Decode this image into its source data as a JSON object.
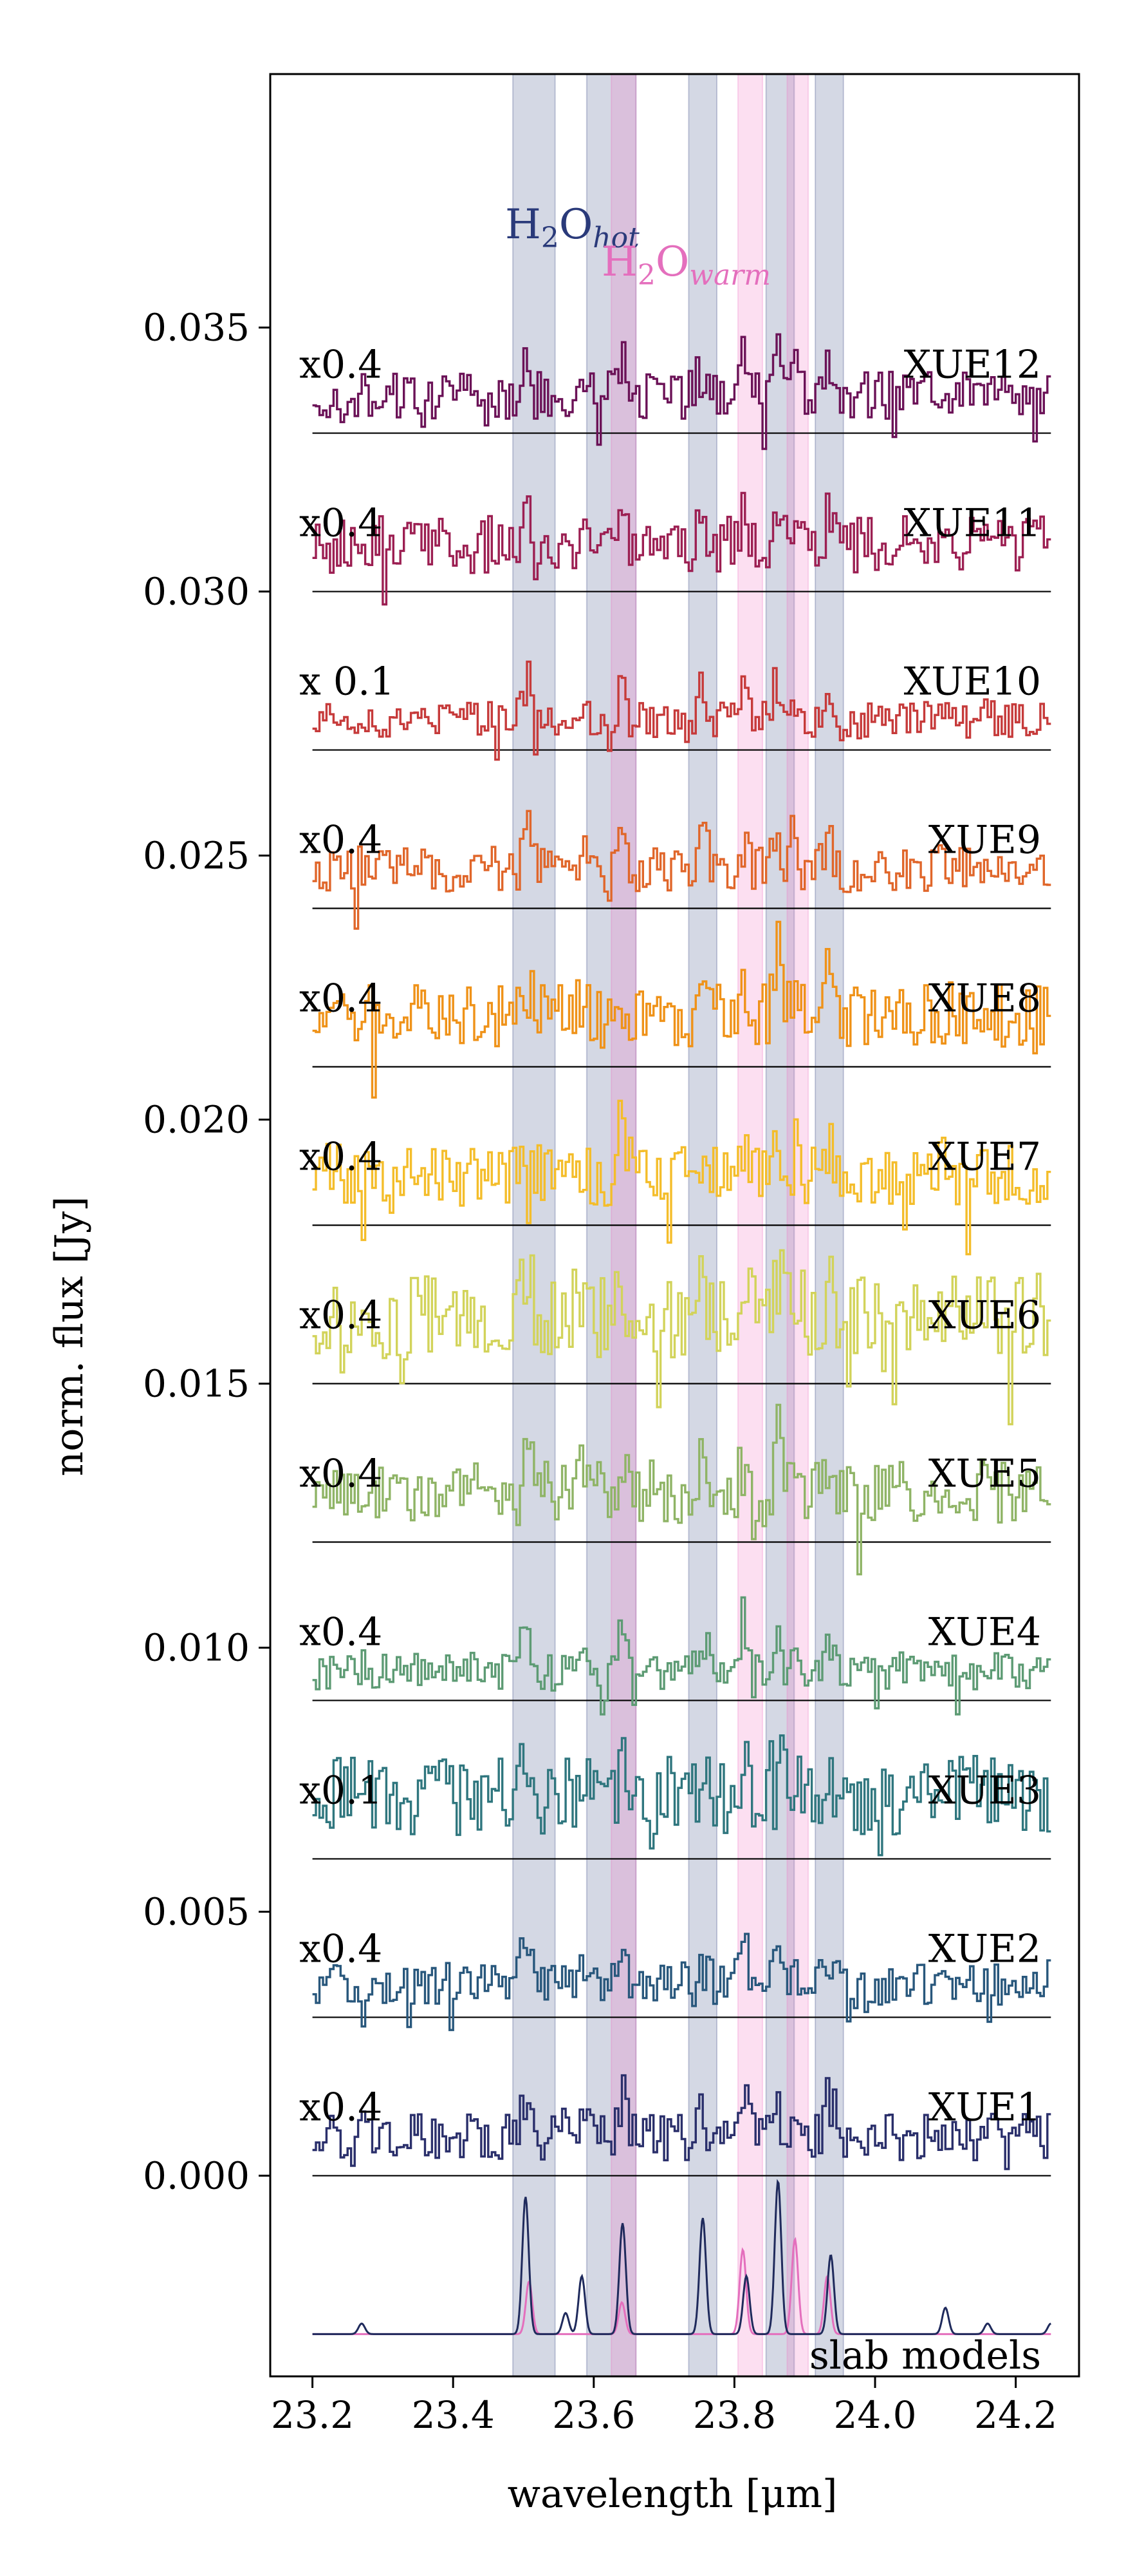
{
  "chart_data": {
    "type": "line",
    "title": "",
    "xlabel": "wavelength [μm]",
    "ylabel": "norm. flux [Jy]",
    "xlim": [
      23.14,
      24.29
    ],
    "ylim": [
      -0.0038,
      0.0398
    ],
    "x_ticks": [
      23.2,
      23.4,
      23.6,
      23.8,
      24.0,
      24.2
    ],
    "x_tick_labels": [
      "23.2",
      "23.4",
      "23.6",
      "23.8",
      "24.0",
      "24.2"
    ],
    "y_ticks": [
      0.0,
      0.005,
      0.01,
      0.015,
      0.02,
      0.025,
      0.03,
      0.035
    ],
    "y_tick_labels": [
      "0.000",
      "0.005",
      "0.010",
      "0.015",
      "0.020",
      "0.025",
      "0.030",
      "0.035"
    ],
    "x_range": [
      23.2,
      24.25
    ],
    "series": [
      {
        "name": "XUE1",
        "scale_label": "x0.4",
        "offset": 0.0,
        "color": "#2a2f6b",
        "amplitude": 0.00045,
        "seed": 11
      },
      {
        "name": "XUE2",
        "scale_label": "x0.4",
        "offset": 0.003,
        "color": "#28577c",
        "amplitude": 0.0004,
        "seed": 23
      },
      {
        "name": "XUE3",
        "scale_label": "x0.1",
        "offset": 0.006,
        "color": "#2f767e",
        "amplitude": 0.00075,
        "seed": 37
      },
      {
        "name": "XUE4",
        "scale_label": "x0.4",
        "offset": 0.009,
        "color": "#5d9b74",
        "amplitude": 0.00035,
        "seed": 41
      },
      {
        "name": "XUE5",
        "scale_label": "x0.4",
        "offset": 0.012,
        "color": "#8fb466",
        "amplitude": 0.0006,
        "seed": 53
      },
      {
        "name": "XUE6",
        "scale_label": "x0.4",
        "offset": 0.015,
        "color": "#d2d35a",
        "amplitude": 0.0008,
        "seed": 67
      },
      {
        "name": "XUE7",
        "scale_label": "x0.4",
        "offset": 0.018,
        "color": "#f4bd2a",
        "amplitude": 0.0006,
        "seed": 71
      },
      {
        "name": "XUE8",
        "scale_label": "x0.4",
        "offset": 0.021,
        "color": "#ef9218",
        "amplitude": 0.0006,
        "seed": 83
      },
      {
        "name": "XUE9",
        "scale_label": "x0.4",
        "offset": 0.024,
        "color": "#e0662a",
        "amplitude": 0.00045,
        "seed": 97
      },
      {
        "name": "XUE10",
        "scale_label": "x 0.1",
        "offset": 0.027,
        "color": "#c63a3a",
        "amplitude": 0.00035,
        "seed": 101
      },
      {
        "name": "XUE11",
        "scale_label": "x0.4",
        "offset": 0.03,
        "color": "#9c1f52",
        "amplitude": 0.00055,
        "seed": 113
      },
      {
        "name": "XUE12",
        "scale_label": "x0.4",
        "offset": 0.033,
        "color": "#6b1257",
        "amplitude": 0.00045,
        "seed": 127
      }
    ],
    "bands": {
      "hot": {
        "color": "#2a3a7a",
        "opacity": 0.2,
        "ranges": [
          [
            23.485,
            23.545
          ],
          [
            23.59,
            23.66
          ],
          [
            23.735,
            23.775
          ],
          [
            23.845,
            23.885
          ],
          [
            23.915,
            23.955
          ]
        ]
      },
      "warm": {
        "color": "#f06cc0",
        "opacity": 0.22,
        "ranges": [
          [
            23.625,
            23.66
          ],
          [
            23.805,
            23.84
          ],
          [
            23.875,
            23.905
          ]
        ]
      }
    },
    "band_labels": {
      "hot": {
        "main": "H",
        "sub": "2",
        "rest": "O",
        "sub2": "hot",
        "color": "#2a3a7a"
      },
      "warm": {
        "main": "H",
        "sub": "2",
        "rest": "O",
        "sub2": "warm",
        "color": "#e46fbd"
      }
    },
    "slab_models": {
      "label": "slab models",
      "baseline": -0.003,
      "hot": {
        "color": "#1f2a5c",
        "peaks": [
          [
            23.503,
            0.0026
          ],
          [
            23.583,
            0.0011
          ],
          [
            23.641,
            0.0021
          ],
          [
            23.755,
            0.0022
          ],
          [
            23.817,
            0.0011
          ],
          [
            23.862,
            0.0029
          ],
          [
            23.937,
            0.0015
          ],
          [
            23.56,
            0.0004
          ],
          [
            23.27,
            0.0002
          ],
          [
            24.1,
            0.0005
          ],
          [
            24.16,
            0.0002
          ],
          [
            24.25,
            0.0002
          ]
        ]
      },
      "warm": {
        "color": "#e46fbd",
        "peaks": [
          [
            23.508,
            0.001
          ],
          [
            23.812,
            0.0016
          ],
          [
            23.886,
            0.0018
          ],
          [
            23.932,
            0.0011
          ],
          [
            23.64,
            0.0006
          ]
        ]
      }
    }
  }
}
